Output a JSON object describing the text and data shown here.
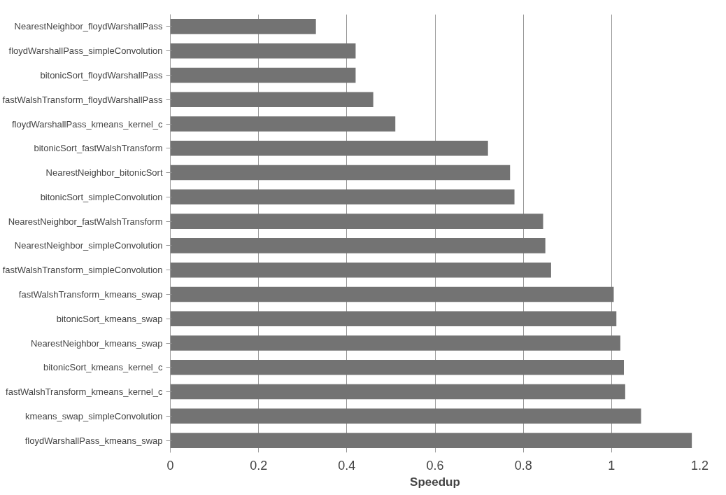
{
  "chart_data": {
    "type": "bar",
    "orientation": "horizontal",
    "xlabel": "Speedup",
    "categories": [
      "NearestNeighbor_floydWarshallPass",
      "floydWarshallPass_simpleConvolution",
      "bitonicSort_floydWarshallPass",
      "fastWalshTransform_floydWarshallPass",
      "floydWarshallPass_kmeans_kernel_c",
      "bitonicSort_fastWalshTransform",
      "NearestNeighbor_bitonicSort",
      "bitonicSort_simpleConvolution",
      "NearestNeighbor_fastWalshTransform",
      "NearestNeighbor_simpleConvolution",
      "fastWalshTransform_simpleConvolution",
      "fastWalshTransform_kmeans_swap",
      "bitonicSort_kmeans_swap",
      "NearestNeighbor_kmeans_swap",
      "bitonicSort_kmeans_kernel_c",
      "fastWalshTransform_kmeans_kernel_c",
      "kmeans_swap_simpleConvolution",
      "floydWarshallPass_kmeans_swap"
    ],
    "values": [
      0.33,
      0.42,
      0.42,
      0.46,
      0.51,
      0.72,
      0.77,
      0.78,
      0.845,
      0.85,
      0.863,
      1.005,
      1.011,
      1.02,
      1.028,
      1.031,
      1.067,
      1.182
    ],
    "color": "#737373",
    "xlim": [
      0,
      1.2
    ],
    "xticks": [
      0,
      0.2,
      0.4,
      0.6,
      0.8,
      1,
      1.2
    ],
    "grid": "x"
  }
}
